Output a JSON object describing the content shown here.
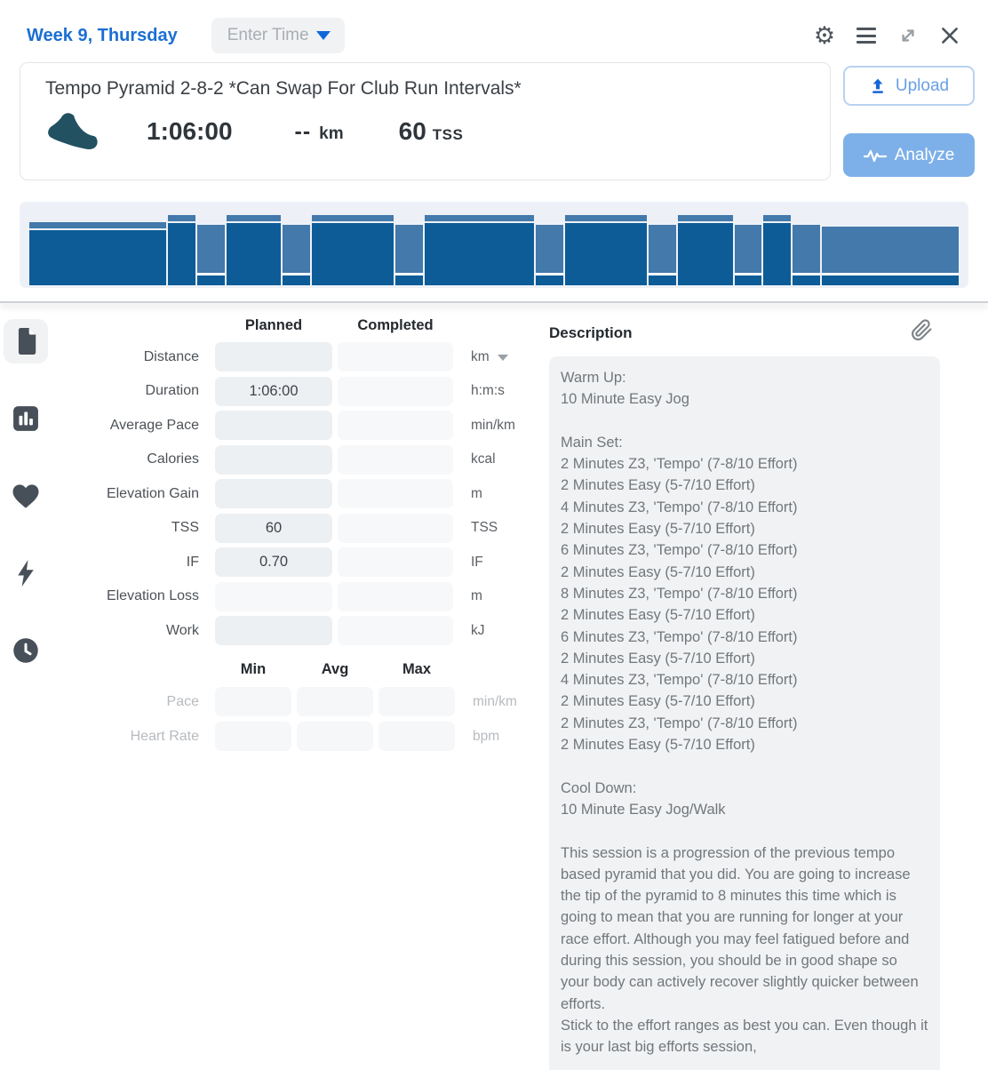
{
  "colors": {
    "accent_blue": "#1b6fd3",
    "bar_dark": "#0d5c97",
    "bar_light": "#4379ab",
    "analyze_button_bg": "#7db0e8",
    "shoe_icon": "#225161"
  },
  "topbar": {
    "title": "Week 9, Thursday",
    "enter_time_label": "Enter Time"
  },
  "summary": {
    "title": "Tempo Pyramid 2-8-2 *Can Swap For Club Run Intervals*",
    "duration": "1:06:00",
    "distance_value": "--",
    "distance_unit": "km",
    "tss_value": "60",
    "tss_unit": "TSS",
    "upload_label": "Upload",
    "analyze_label": "Analyze"
  },
  "workout_graph": {
    "total_minutes": 66,
    "intervals": [
      {
        "zone": "warmup",
        "minutes": 10
      },
      {
        "zone": "z3",
        "minutes": 2
      },
      {
        "zone": "easy",
        "minutes": 2
      },
      {
        "zone": "z3",
        "minutes": 4
      },
      {
        "zone": "easy",
        "minutes": 2
      },
      {
        "zone": "z3",
        "minutes": 6
      },
      {
        "zone": "easy",
        "minutes": 2
      },
      {
        "zone": "z3",
        "minutes": 8
      },
      {
        "zone": "easy",
        "minutes": 2
      },
      {
        "zone": "z3",
        "minutes": 6
      },
      {
        "zone": "easy",
        "minutes": 2
      },
      {
        "zone": "z3",
        "minutes": 4
      },
      {
        "zone": "easy",
        "minutes": 2
      },
      {
        "zone": "z3",
        "minutes": 2
      },
      {
        "zone": "easy",
        "minutes": 2
      },
      {
        "zone": "cooldown",
        "minutes": 10
      }
    ]
  },
  "details": {
    "planned_header": "Planned",
    "completed_header": "Completed",
    "rows": [
      {
        "label": "Distance",
        "planned": "",
        "completed": "",
        "unit": "km"
      },
      {
        "label": "Duration",
        "planned": "1:06:00",
        "completed": "",
        "unit": "h:m:s"
      },
      {
        "label": "Average Pace",
        "planned": "",
        "completed": "",
        "unit": "min/km"
      },
      {
        "label": "Calories",
        "planned": "",
        "completed": "",
        "unit": "kcal"
      },
      {
        "label": "Elevation Gain",
        "planned": "",
        "completed": "",
        "unit": "m"
      },
      {
        "label": "TSS",
        "planned": "60",
        "completed": "",
        "unit": "TSS"
      },
      {
        "label": "IF",
        "planned": "0.70",
        "completed": "",
        "unit": "IF"
      },
      {
        "label": "Elevation Loss",
        "planned": "",
        "completed": "",
        "unit": "m"
      },
      {
        "label": "Work",
        "planned": "",
        "completed": "",
        "unit": "kJ"
      }
    ]
  },
  "minmax": {
    "min_header": "Min",
    "avg_header": "Avg",
    "max_header": "Max",
    "rows": [
      {
        "label": "Pace",
        "min": "",
        "avg": "",
        "max": "",
        "unit": "min/km"
      },
      {
        "label": "Heart Rate",
        "min": "",
        "avg": "",
        "max": "",
        "unit": "bpm"
      }
    ]
  },
  "description": {
    "header": "Description",
    "text": "Warm Up:\n10 Minute Easy Jog\n\nMain Set:\n2 Minutes Z3, 'Tempo' (7-8/10 Effort)\n2 Minutes Easy (5-7/10 Effort)\n4 Minutes Z3, 'Tempo' (7-8/10 Effort)\n2 Minutes Easy (5-7/10 Effort)\n6 Minutes Z3, 'Tempo' (7-8/10 Effort)\n2 Minutes Easy (5-7/10 Effort)\n8 Minutes Z3, 'Tempo' (7-8/10 Effort)\n2 Minutes Easy (5-7/10 Effort)\n6 Minutes Z3, 'Tempo' (7-8/10 Effort)\n2 Minutes Easy (5-7/10 Effort)\n4 Minutes Z3, 'Tempo' (7-8/10 Effort)\n2 Minutes Easy (5-7/10 Effort)\n2 Minutes Z3, 'Tempo' (7-8/10 Effort)\n2 Minutes Easy (5-7/10 Effort)\n\nCool Down:\n10 Minute Easy Jog/Walk\n\nThis session is a progression of the previous tempo based pyramid that you did. You are going to increase the tip of the pyramid to 8 minutes this time which is going to mean that you are running for longer at your race effort. Although you may feel fatigued before and during this session, you should be in good shape so your body can actively recover slightly quicker between efforts.\nStick to the effort ranges as best you can. Even though it is your last big efforts session,"
  }
}
